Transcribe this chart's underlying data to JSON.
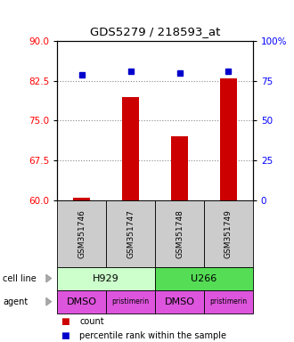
{
  "title": "GDS5279 / 218593_at",
  "samples": [
    "GSM351746",
    "GSM351747",
    "GSM351748",
    "GSM351749"
  ],
  "count_values": [
    60.5,
    79.5,
    72.0,
    83.0
  ],
  "percentile_pct": [
    79,
    81,
    80,
    81
  ],
  "left_ylim": [
    60,
    90
  ],
  "left_yticks": [
    60,
    67.5,
    75,
    82.5,
    90
  ],
  "right_yticks": [
    0,
    25,
    50,
    75,
    100
  ],
  "right_ylim": [
    0,
    100
  ],
  "bar_color": "#cc0000",
  "dot_color": "#0000cc",
  "cell_line_labels": [
    "H929",
    "U266"
  ],
  "cell_line_colors": [
    "#ccffcc",
    "#55dd55"
  ],
  "cell_line_spans": [
    [
      0,
      2
    ],
    [
      2,
      4
    ]
  ],
  "agent_labels": [
    "DMSO",
    "pristimerin",
    "DMSO",
    "pristimerin"
  ],
  "agent_color": "#dd55dd",
  "sample_box_color": "#cccccc",
  "dotted_line_color": "#888888",
  "background_color": "#ffffff"
}
